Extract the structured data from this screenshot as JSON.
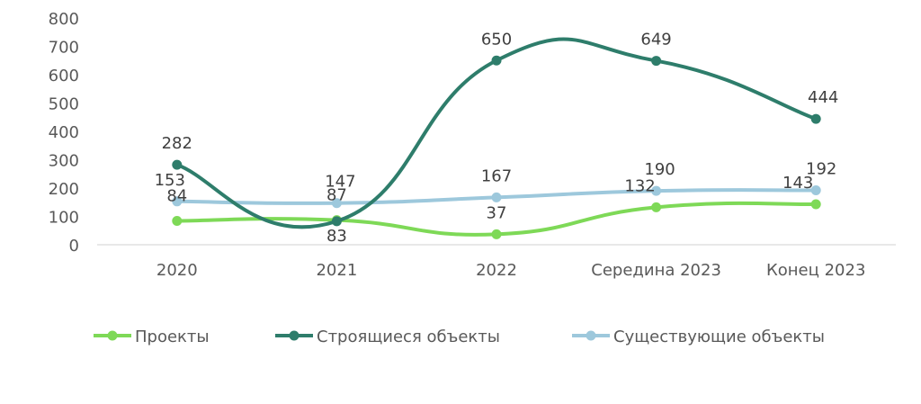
{
  "chart_data": {
    "type": "line",
    "title": "",
    "xlabel": "",
    "ylabel": "",
    "categories": [
      "2020",
      "2021",
      "2022",
      "Середина 2023",
      "Конец 2023"
    ],
    "ylim": [
      0,
      800
    ],
    "yticks": [
      "0",
      "100",
      "200",
      "300",
      "400",
      "500",
      "600",
      "700",
      "800"
    ],
    "grid": false,
    "smooth": true,
    "legend_position": "bottom",
    "series": [
      {
        "name": "Проекты",
        "color": "#7ED957",
        "values": [
          84,
          87,
          37,
          132,
          143
        ]
      },
      {
        "name": "Строящиеся объекты",
        "color": "#2E7D6B",
        "values": [
          282,
          83,
          650,
          649,
          444
        ]
      },
      {
        "name": "Существующие объекты",
        "color": "#9DC8DC",
        "values": [
          153,
          147,
          167,
          190,
          192
        ]
      }
    ]
  }
}
